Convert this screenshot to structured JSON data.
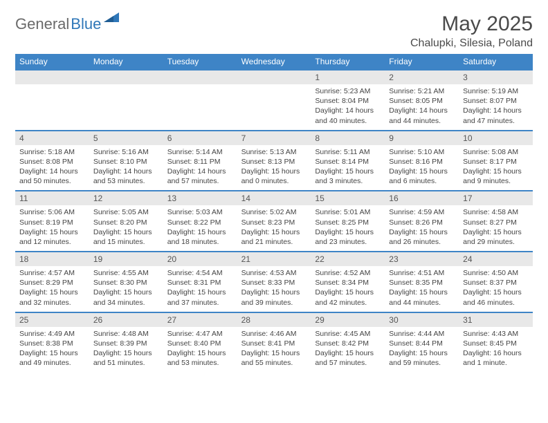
{
  "logo": {
    "part1": "General",
    "part2": "Blue"
  },
  "title": "May 2025",
  "location": "Chalupki, Silesia, Poland",
  "colors": {
    "header_bg": "#3e84c6",
    "header_text": "#ffffff",
    "daynum_bg": "#e8e8e8",
    "border_top": "#3e84c6",
    "text": "#444444",
    "title_text": "#4a4a4a",
    "logo_gray": "#6a6a6a",
    "logo_blue": "#2f77b8"
  },
  "weekdays": [
    "Sunday",
    "Monday",
    "Tuesday",
    "Wednesday",
    "Thursday",
    "Friday",
    "Saturday"
  ],
  "weeks": [
    [
      {
        "n": "",
        "sr": "",
        "ss": "",
        "dl": ""
      },
      {
        "n": "",
        "sr": "",
        "ss": "",
        "dl": ""
      },
      {
        "n": "",
        "sr": "",
        "ss": "",
        "dl": ""
      },
      {
        "n": "",
        "sr": "",
        "ss": "",
        "dl": ""
      },
      {
        "n": "1",
        "sr": "Sunrise: 5:23 AM",
        "ss": "Sunset: 8:04 PM",
        "dl": "Daylight: 14 hours and 40 minutes."
      },
      {
        "n": "2",
        "sr": "Sunrise: 5:21 AM",
        "ss": "Sunset: 8:05 PM",
        "dl": "Daylight: 14 hours and 44 minutes."
      },
      {
        "n": "3",
        "sr": "Sunrise: 5:19 AM",
        "ss": "Sunset: 8:07 PM",
        "dl": "Daylight: 14 hours and 47 minutes."
      }
    ],
    [
      {
        "n": "4",
        "sr": "Sunrise: 5:18 AM",
        "ss": "Sunset: 8:08 PM",
        "dl": "Daylight: 14 hours and 50 minutes."
      },
      {
        "n": "5",
        "sr": "Sunrise: 5:16 AM",
        "ss": "Sunset: 8:10 PM",
        "dl": "Daylight: 14 hours and 53 minutes."
      },
      {
        "n": "6",
        "sr": "Sunrise: 5:14 AM",
        "ss": "Sunset: 8:11 PM",
        "dl": "Daylight: 14 hours and 57 minutes."
      },
      {
        "n": "7",
        "sr": "Sunrise: 5:13 AM",
        "ss": "Sunset: 8:13 PM",
        "dl": "Daylight: 15 hours and 0 minutes."
      },
      {
        "n": "8",
        "sr": "Sunrise: 5:11 AM",
        "ss": "Sunset: 8:14 PM",
        "dl": "Daylight: 15 hours and 3 minutes."
      },
      {
        "n": "9",
        "sr": "Sunrise: 5:10 AM",
        "ss": "Sunset: 8:16 PM",
        "dl": "Daylight: 15 hours and 6 minutes."
      },
      {
        "n": "10",
        "sr": "Sunrise: 5:08 AM",
        "ss": "Sunset: 8:17 PM",
        "dl": "Daylight: 15 hours and 9 minutes."
      }
    ],
    [
      {
        "n": "11",
        "sr": "Sunrise: 5:06 AM",
        "ss": "Sunset: 8:19 PM",
        "dl": "Daylight: 15 hours and 12 minutes."
      },
      {
        "n": "12",
        "sr": "Sunrise: 5:05 AM",
        "ss": "Sunset: 8:20 PM",
        "dl": "Daylight: 15 hours and 15 minutes."
      },
      {
        "n": "13",
        "sr": "Sunrise: 5:03 AM",
        "ss": "Sunset: 8:22 PM",
        "dl": "Daylight: 15 hours and 18 minutes."
      },
      {
        "n": "14",
        "sr": "Sunrise: 5:02 AM",
        "ss": "Sunset: 8:23 PM",
        "dl": "Daylight: 15 hours and 21 minutes."
      },
      {
        "n": "15",
        "sr": "Sunrise: 5:01 AM",
        "ss": "Sunset: 8:25 PM",
        "dl": "Daylight: 15 hours and 23 minutes."
      },
      {
        "n": "16",
        "sr": "Sunrise: 4:59 AM",
        "ss": "Sunset: 8:26 PM",
        "dl": "Daylight: 15 hours and 26 minutes."
      },
      {
        "n": "17",
        "sr": "Sunrise: 4:58 AM",
        "ss": "Sunset: 8:27 PM",
        "dl": "Daylight: 15 hours and 29 minutes."
      }
    ],
    [
      {
        "n": "18",
        "sr": "Sunrise: 4:57 AM",
        "ss": "Sunset: 8:29 PM",
        "dl": "Daylight: 15 hours and 32 minutes."
      },
      {
        "n": "19",
        "sr": "Sunrise: 4:55 AM",
        "ss": "Sunset: 8:30 PM",
        "dl": "Daylight: 15 hours and 34 minutes."
      },
      {
        "n": "20",
        "sr": "Sunrise: 4:54 AM",
        "ss": "Sunset: 8:31 PM",
        "dl": "Daylight: 15 hours and 37 minutes."
      },
      {
        "n": "21",
        "sr": "Sunrise: 4:53 AM",
        "ss": "Sunset: 8:33 PM",
        "dl": "Daylight: 15 hours and 39 minutes."
      },
      {
        "n": "22",
        "sr": "Sunrise: 4:52 AM",
        "ss": "Sunset: 8:34 PM",
        "dl": "Daylight: 15 hours and 42 minutes."
      },
      {
        "n": "23",
        "sr": "Sunrise: 4:51 AM",
        "ss": "Sunset: 8:35 PM",
        "dl": "Daylight: 15 hours and 44 minutes."
      },
      {
        "n": "24",
        "sr": "Sunrise: 4:50 AM",
        "ss": "Sunset: 8:37 PM",
        "dl": "Daylight: 15 hours and 46 minutes."
      }
    ],
    [
      {
        "n": "25",
        "sr": "Sunrise: 4:49 AM",
        "ss": "Sunset: 8:38 PM",
        "dl": "Daylight: 15 hours and 49 minutes."
      },
      {
        "n": "26",
        "sr": "Sunrise: 4:48 AM",
        "ss": "Sunset: 8:39 PM",
        "dl": "Daylight: 15 hours and 51 minutes."
      },
      {
        "n": "27",
        "sr": "Sunrise: 4:47 AM",
        "ss": "Sunset: 8:40 PM",
        "dl": "Daylight: 15 hours and 53 minutes."
      },
      {
        "n": "28",
        "sr": "Sunrise: 4:46 AM",
        "ss": "Sunset: 8:41 PM",
        "dl": "Daylight: 15 hours and 55 minutes."
      },
      {
        "n": "29",
        "sr": "Sunrise: 4:45 AM",
        "ss": "Sunset: 8:42 PM",
        "dl": "Daylight: 15 hours and 57 minutes."
      },
      {
        "n": "30",
        "sr": "Sunrise: 4:44 AM",
        "ss": "Sunset: 8:44 PM",
        "dl": "Daylight: 15 hours and 59 minutes."
      },
      {
        "n": "31",
        "sr": "Sunrise: 4:43 AM",
        "ss": "Sunset: 8:45 PM",
        "dl": "Daylight: 16 hours and 1 minute."
      }
    ]
  ]
}
